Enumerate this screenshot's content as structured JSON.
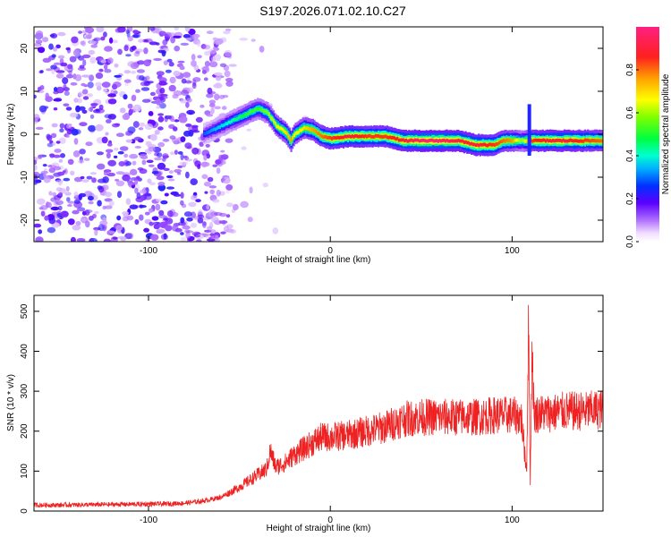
{
  "title": "S197.2026.071.02.10.C27",
  "chart_data": [
    {
      "type": "heatmap",
      "title": "S197.2026.071.02.10.C27",
      "xlabel": "Height of straight line (km)",
      "ylabel": "Frequency (Hz)",
      "xlim": [
        -163,
        150
      ],
      "ylim": [
        -25,
        25
      ],
      "x_ticks": [
        -100,
        0,
        100
      ],
      "y_ticks": [
        -20,
        -10,
        0,
        10,
        20
      ],
      "colorbar": {
        "label": "Normalized spectral amplitude",
        "range": [
          0,
          1
        ],
        "ticks": [
          0.0,
          0.2,
          0.4,
          0.6,
          0.8
        ],
        "tick_labels": [
          "0.0",
          "0.2",
          "0.4",
          "0.6",
          "0.8"
        ]
      },
      "noise_region": {
        "x_range": [
          -163,
          -55
        ],
        "freq_range": [
          -25,
          25
        ],
        "amplitude": "0.0-0.3"
      },
      "signal_ridge": {
        "x": [
          -70,
          -60,
          -55,
          -50,
          -45,
          -40,
          -35,
          -30,
          -25,
          -22,
          -20,
          -15,
          -10,
          -5,
          0,
          10,
          20,
          30,
          40,
          50,
          60,
          70,
          80,
          90,
          95,
          100,
          105,
          110,
          120,
          130,
          140,
          150
        ],
        "freq": [
          0,
          2,
          3,
          4,
          5,
          6,
          5,
          2,
          0.5,
          -1.5,
          0,
          1.5,
          1,
          -0.5,
          -1,
          -0.5,
          -0.5,
          -0.5,
          -1.5,
          -1.5,
          -1.5,
          -1.5,
          -2.5,
          -2.5,
          -1.5,
          -1.5,
          -1.5,
          -1.5,
          -1.5,
          -1.5,
          -1.5,
          -1.5
        ],
        "amplitude": [
          0.3,
          0.4,
          0.45,
          0.5,
          0.55,
          0.55,
          0.6,
          0.7,
          0.75,
          0.8,
          0.7,
          0.75,
          0.8,
          0.85,
          0.9,
          0.95,
          0.9,
          0.9,
          0.95,
          1.0,
          1.0,
          0.95,
          0.95,
          0.9,
          0.85,
          0.8,
          0.6,
          0.9,
          0.95,
          0.95,
          0.9,
          0.85
        ]
      }
    },
    {
      "type": "line",
      "xlabel": "Height of straight line (km)",
      "ylabel": "SNR (10 * v/v)",
      "xlim": [
        -163,
        150
      ],
      "ylim": [
        0,
        540
      ],
      "x_ticks": [
        -100,
        0,
        100
      ],
      "y_ticks": [
        0,
        100,
        200,
        300,
        400,
        500
      ],
      "series": [
        {
          "name": "SNR",
          "color": "#ee2222",
          "x": [
            -163,
            -150,
            -130,
            -110,
            -90,
            -80,
            -70,
            -60,
            -50,
            -40,
            -35,
            -33,
            -30,
            -25,
            -20,
            -15,
            -10,
            -5,
            0,
            10,
            20,
            30,
            40,
            50,
            60,
            70,
            80,
            90,
            100,
            105,
            108,
            109,
            110,
            111,
            112,
            115,
            120,
            130,
            140,
            150
          ],
          "y": [
            15,
            15,
            16,
            17,
            18,
            20,
            25,
            35,
            60,
            90,
            105,
            150,
            110,
            120,
            140,
            155,
            170,
            185,
            185,
            190,
            200,
            210,
            230,
            235,
            235,
            235,
            235,
            240,
            240,
            235,
            100,
            470,
            80,
            420,
            240,
            245,
            245,
            250,
            250,
            255
          ]
        }
      ]
    }
  ]
}
